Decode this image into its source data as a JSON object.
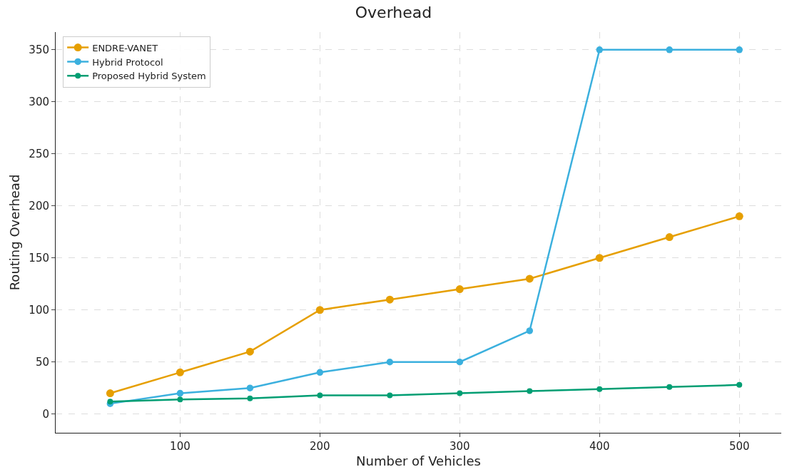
{
  "chart_data": {
    "type": "line",
    "title": "Overhead",
    "xlabel": "Number of Vehicles",
    "ylabel": "Routing Overhead",
    "x": [
      50,
      100,
      150,
      200,
      250,
      300,
      350,
      400,
      450,
      500
    ],
    "series": [
      {
        "name": "ENDRE-VANET",
        "color": "#e69f00",
        "values": [
          20,
          40,
          60,
          100,
          110,
          120,
          130,
          150,
          170,
          190
        ]
      },
      {
        "name": "Hybrid Protocol",
        "color": "#3bb0de",
        "values": [
          10,
          20,
          25,
          40,
          50,
          50,
          80,
          350,
          350,
          350
        ]
      },
      {
        "name": "Proposed Hybrid System",
        "color": "#009e73",
        "values": [
          12,
          14,
          15,
          18,
          18,
          20,
          22,
          24,
          26,
          28
        ]
      }
    ],
    "xlim": [
      11,
      530
    ],
    "xticks": [
      100,
      200,
      300,
      400,
      500
    ],
    "ylim": [
      -18,
      367
    ],
    "yticks": [
      0,
      50,
      100,
      150,
      200,
      250,
      300,
      350
    ],
    "grid": true,
    "legend": "top left",
    "marker": "circle",
    "line_style": "solid"
  }
}
